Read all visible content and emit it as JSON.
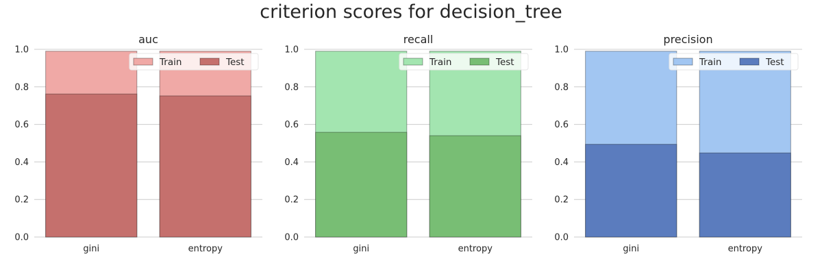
{
  "figure": {
    "title": "criterion scores for decision_tree"
  },
  "chart_data": [
    {
      "type": "bar",
      "title": "auc",
      "categories": [
        "gini",
        "entropy"
      ],
      "series": [
        {
          "name": "Train",
          "values": [
            0.99,
            0.99
          ],
          "color": "#f0a9a6"
        },
        {
          "name": "Test",
          "values": [
            0.762,
            0.752
          ],
          "color": "#c5706d"
        }
      ],
      "ylim": [
        0,
        1.0
      ],
      "yticks": [
        "0.0",
        "0.2",
        "0.4",
        "0.6",
        "0.8",
        "1.0"
      ],
      "grid": true,
      "legend_position": "top-right"
    },
    {
      "type": "bar",
      "title": "recall",
      "categories": [
        "gini",
        "entropy"
      ],
      "series": [
        {
          "name": "Train",
          "values": [
            0.99,
            0.99
          ],
          "color": "#a3e5b0"
        },
        {
          "name": "Test",
          "values": [
            0.558,
            0.54
          ],
          "color": "#78be74"
        }
      ],
      "ylim": [
        0,
        1.0
      ],
      "yticks": [
        "0.0",
        "0.2",
        "0.4",
        "0.6",
        "0.8",
        "1.0"
      ],
      "grid": true,
      "legend_position": "top-right"
    },
    {
      "type": "bar",
      "title": "precision",
      "categories": [
        "gini",
        "entropy"
      ],
      "series": [
        {
          "name": "Train",
          "values": [
            0.99,
            0.99
          ],
          "color": "#a2c6f2"
        },
        {
          "name": "Test",
          "values": [
            0.494,
            0.448
          ],
          "color": "#5b7cbe"
        }
      ],
      "ylim": [
        0,
        1.0
      ],
      "yticks": [
        "0.0",
        "0.2",
        "0.4",
        "0.6",
        "0.8",
        "1.0"
      ],
      "grid": true,
      "legend_position": "top-right"
    }
  ]
}
